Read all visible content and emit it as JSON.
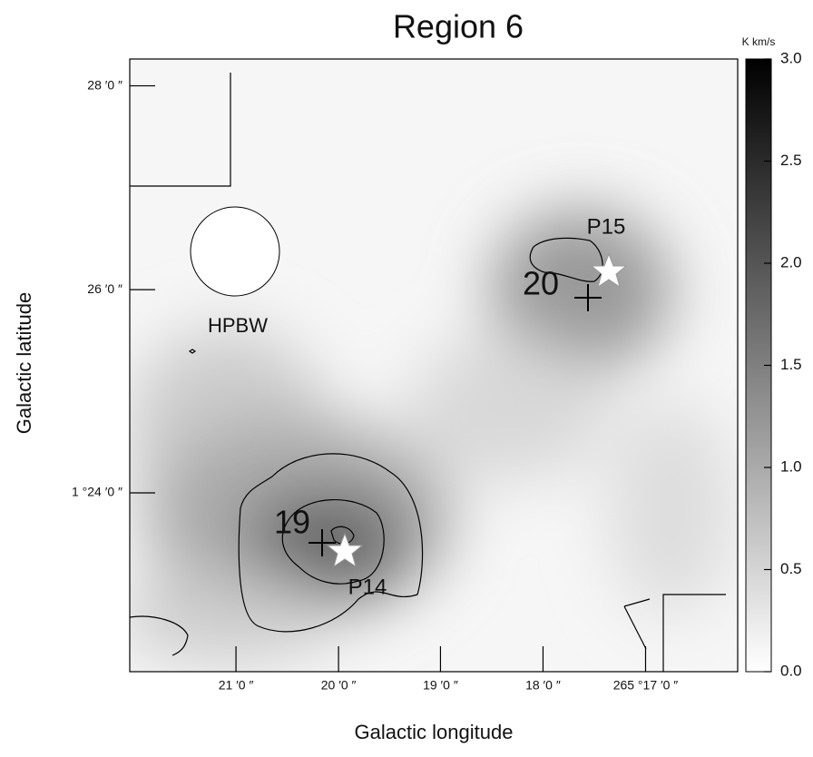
{
  "chart_data": {
    "type": "map",
    "title": "Region 6",
    "x_label": "Galactic longitude",
    "y_label": "Galactic latitude",
    "xlim": [
      265.3673,
      265.2683
    ],
    "xticks": [
      {
        "value": 265.35,
        "label": "21 ′0 ″"
      },
      {
        "value": 265.3333,
        "label": "20 ′0 ″"
      },
      {
        "value": 265.3167,
        "label": "19 ′0 ″"
      },
      {
        "value": 265.3,
        "label": "18 ′0 ″"
      },
      {
        "value": 265.2833,
        "label": "265 °17 ′0 ″"
      }
    ],
    "ylim": [
      1.3707,
      1.4711
    ],
    "yticks": [
      {
        "value": 1.4667,
        "label": "28 ′0 ″"
      },
      {
        "value": 1.4333,
        "label": "26 ′0 ″"
      },
      {
        "value": 1.4,
        "label": "1 °24 ′0 ″"
      }
    ],
    "colorbar_label": "K km/s",
    "colorbar_lim": [
      0,
      3
    ],
    "colorbar_ticks": [
      {
        "value": 0,
        "label": "0.0"
      },
      0.5,
      {
        "value": 1,
        "label": "1.0"
      },
      1.5,
      {
        "value": 2,
        "label": "2.0"
      },
      2.5,
      {
        "value": 3,
        "label": "3.0"
      }
    ],
    "annotations": [
      "HPBW",
      "P15",
      "20",
      "19",
      "P14"
    ]
  }
}
